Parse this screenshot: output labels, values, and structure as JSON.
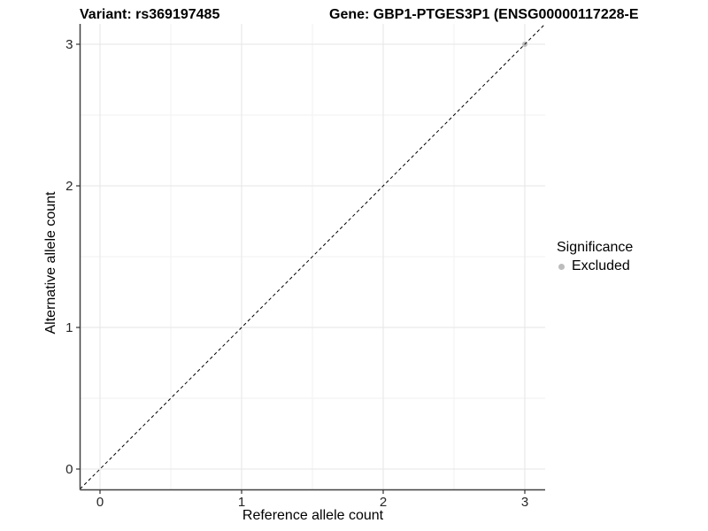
{
  "titles": {
    "variant": "Variant: rs369197485",
    "gene": "Gene: GBP1-PTGES3P1 (ENSG00000117228-E"
  },
  "chart_data": {
    "type": "scatter",
    "title": "Variant: rs369197485",
    "xlabel": "Reference allele count",
    "ylabel": "Alternative allele count",
    "xlim": [
      -0.15,
      3.15
    ],
    "ylim": [
      -0.15,
      3.15
    ],
    "xticks": [
      0,
      1,
      2,
      3
    ],
    "yticks": [
      0,
      1,
      2,
      3
    ],
    "x_minor_ticks": [
      0.5,
      1.5,
      2.5
    ],
    "y_minor_ticks": [
      0.5,
      1.5,
      2.5
    ],
    "grid": true,
    "series": [
      {
        "name": "Excluded",
        "color": "#bdbdbd",
        "points": [
          {
            "x": 3,
            "y": 3
          }
        ]
      }
    ],
    "reference_line": {
      "slope": 1,
      "intercept": 0,
      "style": "dashed",
      "color": "#000000"
    },
    "legend": {
      "title": "Significance",
      "position": "right",
      "items": [
        {
          "label": "Excluded",
          "color": "#bdbdbd"
        }
      ]
    },
    "style_colors": {
      "grid_major": "#e6e6e6",
      "grid_minor": "#f2f2f2",
      "axis_line": "#404040",
      "tick_mark": "#333333",
      "tick_text": "#262626",
      "background": "#ffffff"
    }
  }
}
